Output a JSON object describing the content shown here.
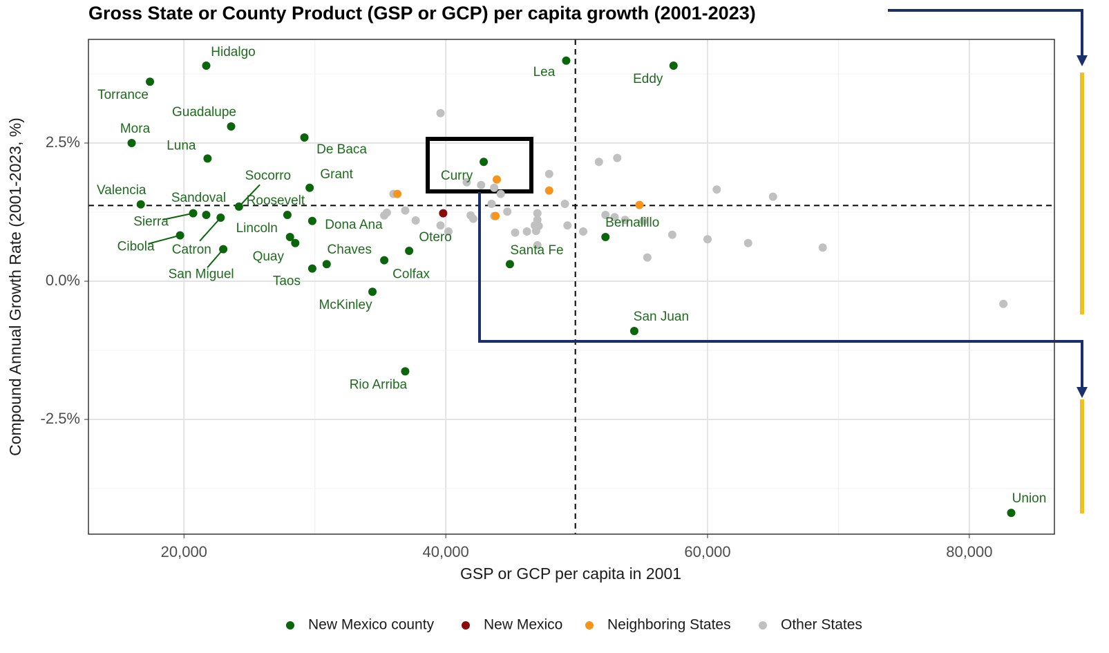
{
  "chart_data": {
    "type": "scatter",
    "title": "Gross State or County Product (GSP or GCP) per capita growth (2001-2023)",
    "x_label": "GSP or GCP per capita in 2001",
    "y_label": "Compound Annual Growth Rate (2001-2023, %)",
    "xlim": [
      12700,
      86500
    ],
    "ylim": [
      -4.575,
      4.375
    ],
    "xticks": [
      {
        "value": 20000,
        "label": "20,000"
      },
      {
        "value": 40000,
        "label": "40,000"
      },
      {
        "value": 60000,
        "label": "60,000"
      },
      {
        "value": 80000,
        "label": "80,000"
      }
    ],
    "yticks": [
      {
        "value": -2.5,
        "label": "-2.5%"
      },
      {
        "value": 0,
        "label": "0.0%"
      },
      {
        "value": 2.5,
        "label": "2.5%"
      }
    ],
    "x_minor_ticks": [
      30000,
      50000,
      70000
    ],
    "y_minor_ticks": [
      -3.75,
      -1.25,
      1.25,
      3.75
    ],
    "grid": true,
    "vline": 49900,
    "hline": 1.37,
    "legend": "bottom",
    "series": [
      {
        "name": "New Mexico county",
        "color": "#0b660b",
        "labels": [
          "Hidalgo",
          "Torrance",
          "Guadalupe",
          "Mora",
          "Luna",
          "De Baca",
          "Grant",
          "Socorro",
          "Valencia",
          "Sandoval",
          "Sierra",
          "Catron",
          "Cibola",
          "San Miguel",
          "Roosevelt",
          "Lincoln",
          "Quay",
          "Taos",
          "Dona Ana",
          "Chaves",
          "Colfax",
          "McKinley",
          "Otero",
          "Curry",
          "Lea",
          "Eddy",
          "Bernalillo",
          "Santa Fe",
          "San Juan",
          "Rio Arriba",
          "Union"
        ],
        "x": [
          21700,
          17400,
          23600,
          16000,
          21800,
          29200,
          29600,
          24200,
          16700,
          21700,
          20700,
          22800,
          19700,
          23000,
          27900,
          28100,
          28500,
          29800,
          29800,
          30900,
          35300,
          34400,
          37200,
          42900,
          49200,
          57400,
          52200,
          44900,
          54400,
          36900,
          83200
        ],
        "values": [
          3.9,
          3.61,
          2.8,
          2.5,
          2.22,
          2.6,
          1.69,
          1.35,
          1.39,
          1.2,
          1.23,
          1.15,
          0.83,
          0.58,
          1.2,
          0.8,
          0.69,
          0.23,
          1.09,
          0.31,
          0.38,
          -0.19,
          0.55,
          2.16,
          3.99,
          3.9,
          0.8,
          0.31,
          -0.9,
          -1.63,
          -4.19
        ]
      },
      {
        "name": "New Mexico",
        "color": "#8b0a0a",
        "x": [
          39800
        ],
        "values": [
          1.23
        ]
      },
      {
        "name": "Neighboring States",
        "color": "#f7941d",
        "x": [
          36300,
          43900,
          47900,
          54800,
          43800
        ],
        "values": [
          1.58,
          1.84,
          1.64,
          1.38,
          1.18
        ]
      },
      {
        "name": "Other States",
        "color": "#c0c0c0",
        "x": [
          39600,
          36000,
          35500,
          35300,
          36900,
          37700,
          39600,
          40200,
          41600,
          41900,
          42100,
          42700,
          43700,
          44200,
          43500,
          44700,
          43700,
          45300,
          46200,
          47000,
          47000,
          46800,
          47100,
          46900,
          47000,
          47900,
          49100,
          49300,
          50500,
          51700,
          53100,
          52200,
          52900,
          53700,
          55100,
          55400,
          57300,
          60000,
          60700,
          63100,
          65000,
          68800,
          82600
        ],
        "values": [
          3.04,
          1.58,
          1.24,
          1.19,
          1.28,
          1.1,
          1.01,
          0.9,
          1.79,
          1.19,
          1.13,
          1.74,
          1.69,
          1.58,
          1.4,
          1.26,
          1.18,
          0.88,
          0.9,
          1.23,
          1.11,
          1.01,
          1.0,
          0.91,
          0.65,
          1.94,
          1.4,
          1.01,
          0.9,
          2.16,
          2.23,
          1.2,
          1.16,
          1.11,
          1.09,
          0.43,
          0.84,
          0.76,
          1.66,
          0.69,
          1.53,
          0.61,
          -0.41
        ]
      }
    ]
  }
}
